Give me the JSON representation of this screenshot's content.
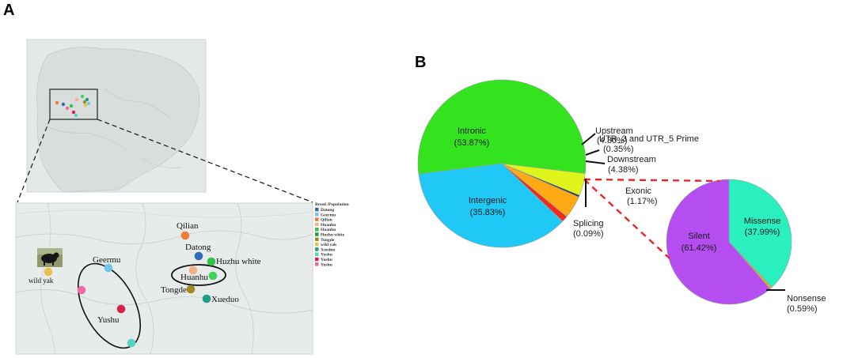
{
  "panels": {
    "a_label": "A",
    "b_label": "B"
  },
  "map_a": {
    "legend_title": "Breed /Population",
    "legend": [
      {
        "label": "Datong",
        "color": "#2f6db5"
      },
      {
        "label": "Geermu",
        "color": "#6fc6e8"
      },
      {
        "label": "Qilian",
        "color": "#ef7d31"
      },
      {
        "label": "Huanhu",
        "color": "#f4b184"
      },
      {
        "label": "Huanhu",
        "color": "#34c24f"
      },
      {
        "label": "Huzhu white",
        "color": "#1e9e3a"
      },
      {
        "label": "Tongde",
        "color": "#9e8a20"
      },
      {
        "label": "wild yak",
        "color": "#e8c14a"
      },
      {
        "label": "Xueduo",
        "color": "#1f9e86"
      },
      {
        "label": "Yushu",
        "color": "#55d4c2"
      },
      {
        "label": "Yushu",
        "color": "#d7214f"
      },
      {
        "label": "Yushu",
        "color": "#f06aa2"
      }
    ],
    "sites": [
      {
        "label": "Qilian",
        "color": "#ef7d31"
      },
      {
        "label": "Datong",
        "color": "#2f6db5"
      },
      {
        "label": "Huzhu white",
        "color": "#34c24f"
      },
      {
        "label": "Huanhu",
        "color": "#f4b184"
      },
      {
        "label": "",
        "color": "#3ed35a"
      },
      {
        "label": "Tongde",
        "color": "#9e8a20"
      },
      {
        "label": "Xueduo",
        "color": "#1f9e86"
      },
      {
        "label": "Geermu",
        "color": "#6fc6e8"
      },
      {
        "label": "wild yak",
        "color": "#e8c14a"
      },
      {
        "label": "",
        "color": "#f06aa2"
      },
      {
        "label": "Yushu",
        "color": "#d7214f"
      },
      {
        "label": "",
        "color": "#55d4c2"
      }
    ]
  },
  "chart_data": [
    {
      "type": "pie",
      "title": "",
      "slices": [
        {
          "label": "Intronic",
          "value": 53.87,
          "display": "(53.87%)",
          "color": "#33e31d"
        },
        {
          "label": "Upstream",
          "value": 4.3,
          "display": "(4.30%)",
          "color": "#dff51a"
        },
        {
          "label": "UTR_3 and UTR_5 Prime",
          "value": 0.35,
          "display": "(0.35%)",
          "color": "#2a2a2a"
        },
        {
          "label": "Downstream",
          "value": 4.38,
          "display": "(4.38%)",
          "color": "#ffaa14"
        },
        {
          "label": "Exonic",
          "value": 1.17,
          "display": "(1.17%)",
          "color": "#ef2b1f"
        },
        {
          "label": "Splicing",
          "value": 0.09,
          "display": "(0.09%)",
          "color": "#111111"
        },
        {
          "label": "Intergenic",
          "value": 35.83,
          "display": "(35.83%)",
          "color": "#1fc8f5"
        }
      ]
    },
    {
      "type": "pie",
      "title": "",
      "slices": [
        {
          "label": "Missense",
          "value": 37.99,
          "display": "(37.99%)",
          "color": "#2af0c0"
        },
        {
          "label": "Nonsense",
          "value": 0.59,
          "display": "(0.59%)",
          "color": "#f2a51a"
        },
        {
          "label": "Silent",
          "value": 61.42,
          "display": "(61.42%)",
          "color": "#b44ef0"
        }
      ]
    }
  ]
}
